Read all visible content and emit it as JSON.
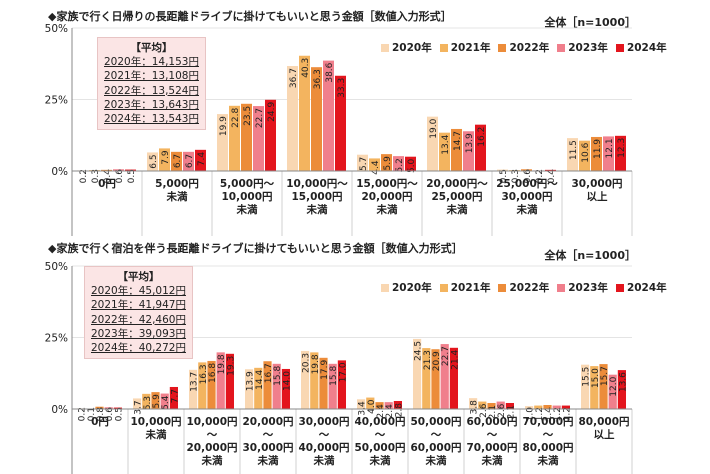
{
  "colors": {
    "2020": "#f9d7b2",
    "2021": "#f3b45f",
    "2022": "#ec8c3a",
    "2023": "#f07f8c",
    "2024": "#e3151d"
  },
  "chart_data": [
    {
      "type": "bar",
      "title": "◆家族で行く日帰りの長距離ドライブに掛けてもいいと思う金額［数値入力形式］",
      "sample": "全体［n=1000］",
      "ylim": [
        0,
        50
      ],
      "yticks": [
        "50%",
        "25%",
        "0%"
      ],
      "categories": [
        "0円",
        "5,000円\n未満",
        "5,000円～\n10,000円\n未満",
        "10,000円～\n15,000円\n未満",
        "15,000円～\n20,000円\n未満",
        "20,000円～\n25,000円\n未満",
        "25,000円～\n30,000円\n未満",
        "30,000円\n以上"
      ],
      "series": [
        {
          "name": "2020年",
          "values": [
            0.2,
            6.5,
            19.9,
            36.7,
            5.7,
            19.0,
            0.5,
            11.5
          ]
        },
        {
          "name": "2021年",
          "values": [
            0.3,
            7.9,
            22.8,
            40.3,
            4.4,
            13.4,
            0.3,
            10.6
          ]
        },
        {
          "name": "2022年",
          "values": [
            0.4,
            6.7,
            23.5,
            36.3,
            5.9,
            14.7,
            0.6,
            11.9
          ]
        },
        {
          "name": "2023年",
          "values": [
            0.6,
            6.7,
            22.7,
            38.6,
            5.2,
            13.9,
            0.2,
            12.1
          ]
        },
        {
          "name": "2024年",
          "values": [
            0.5,
            7.4,
            24.9,
            33.3,
            5.0,
            16.2,
            0.4,
            12.3
          ]
        }
      ],
      "average": {
        "title": "【平均】",
        "lines": [
          "2020年：14,153円",
          "2021年：13,108円",
          "2022年：13,524円",
          "2023年：13,643円",
          "2024年：13,543円"
        ]
      }
    },
    {
      "type": "bar",
      "title": "◆家族で行く宿泊を伴う長距離ドライブに掛けてもいいと思う金額［数値入力形式］",
      "sample": "全体［n=1000］",
      "ylim": [
        0,
        50
      ],
      "yticks": [
        "50%",
        "25%",
        "0%"
      ],
      "categories": [
        "0円",
        "10,000円\n未満",
        "10,000円\n～\n20,000円\n未満",
        "20,000円\n～\n30,000円\n未満",
        "30,000円\n～\n40,000円\n未満",
        "40,000円\n～\n50,000円\n未満",
        "50,000円\n～\n60,000円\n未満",
        "60,000円\n～\n70,000円\n未満",
        "70,000円\n～\n80,000円\n未満",
        "80,000円\n以上"
      ],
      "series": [
        {
          "name": "2020年",
          "values": [
            0.2,
            3.7,
            13.7,
            13.9,
            20.3,
            3.4,
            24.5,
            3.8,
            1.0,
            15.5
          ]
        },
        {
          "name": "2021年",
          "values": [
            0.1,
            5.3,
            16.3,
            14.4,
            19.8,
            4.0,
            21.3,
            2.6,
            1.2,
            15.0
          ]
        },
        {
          "name": "2022年",
          "values": [
            0.8,
            5.9,
            16.8,
            16.7,
            17.9,
            2.4,
            20.9,
            2.1,
            1.4,
            15.7
          ]
        },
        {
          "name": "2023年",
          "values": [
            0.6,
            5.4,
            19.8,
            15.8,
            15.8,
            2.4,
            22.7,
            2.6,
            1.2,
            12.0
          ]
        },
        {
          "name": "2024年",
          "values": [
            0.5,
            7.7,
            19.3,
            14.0,
            17.0,
            2.8,
            21.4,
            2.1,
            1.2,
            13.6
          ]
        }
      ],
      "average": {
        "title": "【平均】",
        "lines": [
          "2020年：45,012円",
          "2021年：41,947円",
          "2022年：42,460円",
          "2023年：39,093円",
          "2024年：40,272円"
        ]
      }
    }
  ]
}
